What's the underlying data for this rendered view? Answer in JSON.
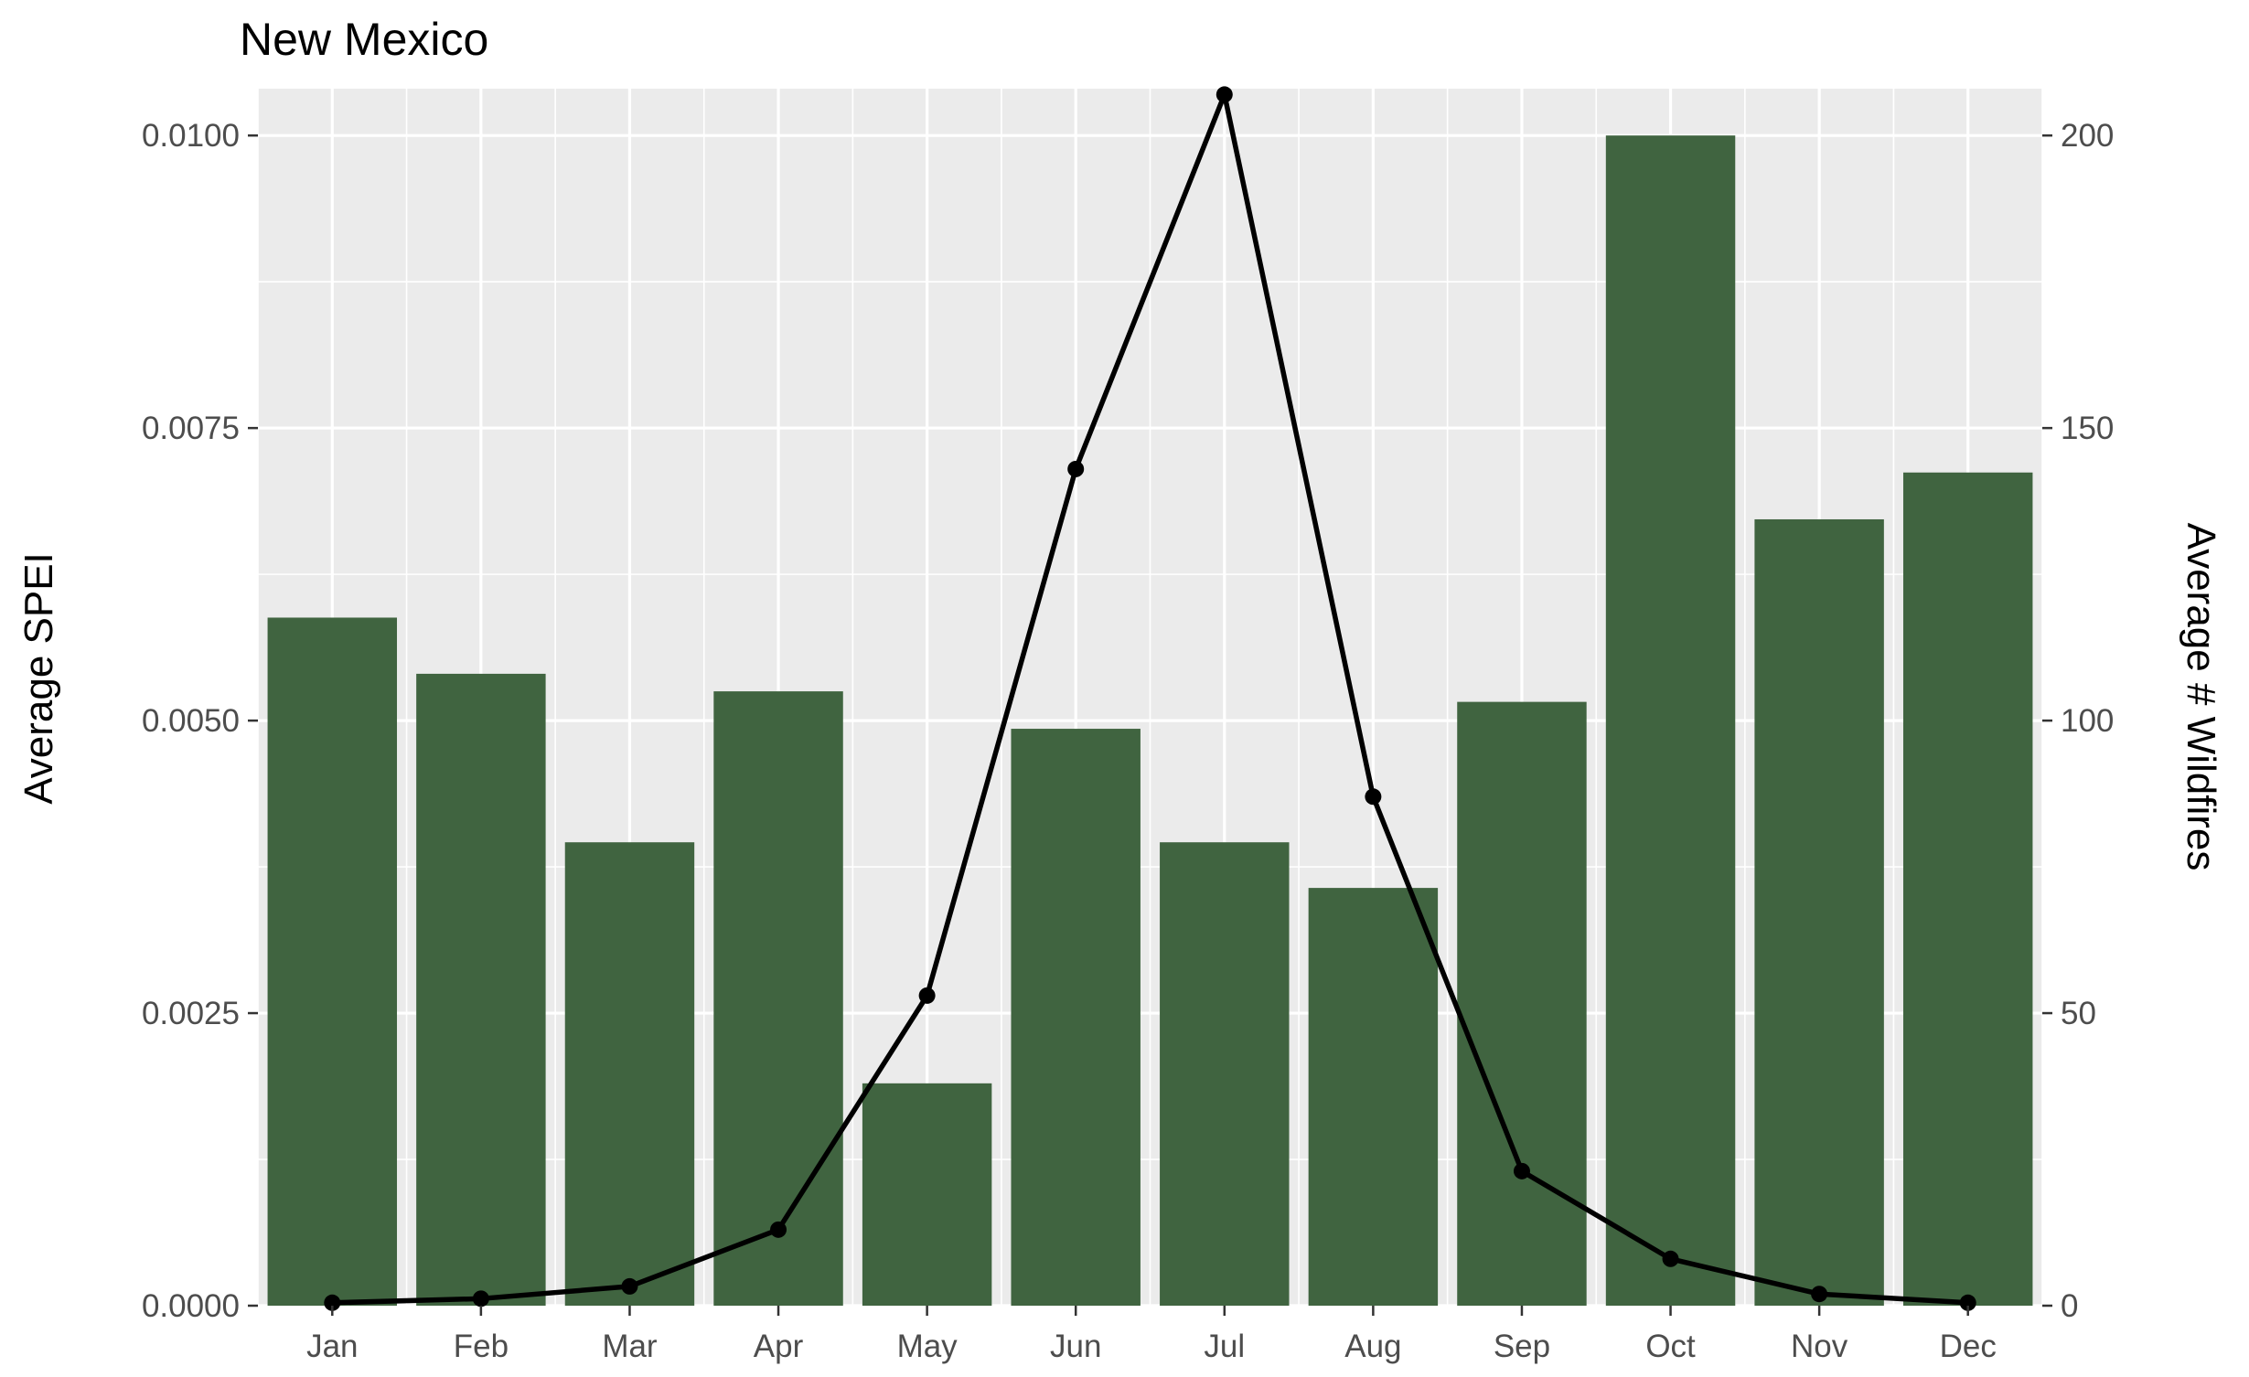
{
  "chart_data": {
    "type": "bar",
    "title": "New Mexico",
    "xlabel": "",
    "ylabel": "Average SPEI",
    "y2label": "Average # Wildfires",
    "categories": [
      "Jan",
      "Feb",
      "Mar",
      "Apr",
      "May",
      "Jun",
      "Jul",
      "Aug",
      "Sep",
      "Oct",
      "Nov",
      "Dec"
    ],
    "ylim": [
      0,
      0.0104
    ],
    "y2lim": [
      0,
      208
    ],
    "yticks": [
      0,
      0.0025,
      0.005,
      0.0075,
      0.01
    ],
    "ytick_labels": [
      "0.0000",
      "0.0025",
      "0.0050",
      "0.0075",
      "0.0100"
    ],
    "y2ticks": [
      0,
      50,
      100,
      150,
      200
    ],
    "y2tick_labels": [
      "0",
      "50",
      "100",
      "150",
      "200"
    ],
    "grid": true,
    "legend": "none",
    "series": [
      {
        "type": "bar",
        "axis": "left",
        "color": "#406440",
        "values": [
          0.00588,
          0.0054,
          0.00396,
          0.00525,
          0.0019,
          0.00493,
          0.00396,
          0.00357,
          0.00516,
          0.01,
          0.00672,
          0.00712
        ]
      },
      {
        "type": "line",
        "axis": "right",
        "color": "#000000",
        "values": [
          0.5,
          1.2,
          3.3,
          13,
          53,
          143,
          207,
          87,
          23,
          8,
          2,
          0.5
        ]
      }
    ]
  }
}
